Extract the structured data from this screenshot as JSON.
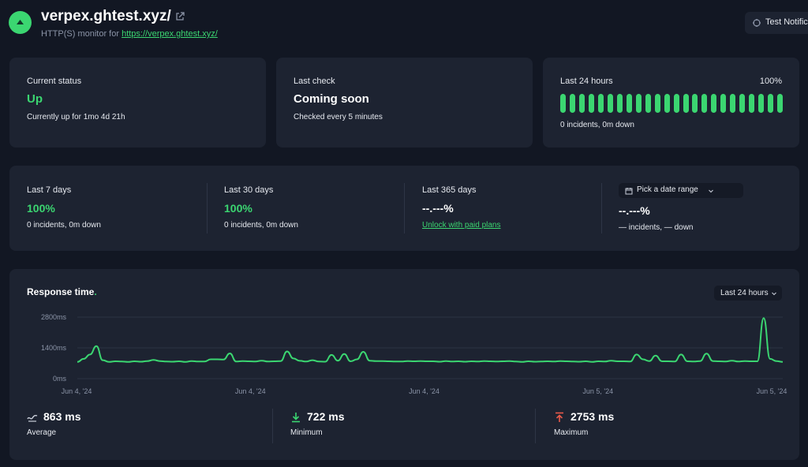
{
  "header": {
    "title": "verpex.ghtest.xyz/",
    "subtitle_prefix": "HTTP(S) monitor for",
    "url": "https://verpex.ghtest.xyz/",
    "test_button": "Test Notifica"
  },
  "current_status": {
    "label": "Current status",
    "value": "Up",
    "detail": "Currently up for 1mo 4d 21h"
  },
  "last_check": {
    "label": "Last check",
    "value": "Coming soon",
    "detail": "Checked every 5 minutes"
  },
  "last24": {
    "label": "Last 24 hours",
    "percent": "100%",
    "detail": "0 incidents, 0m down",
    "bar_count": 24,
    "bar_color": "#3bd671"
  },
  "uptime": [
    {
      "label": "Last 7 days",
      "value": "100%",
      "detail": "0 incidents, 0m down"
    },
    {
      "label": "Last 30 days",
      "value": "100%",
      "detail": "0 incidents, 0m down"
    },
    {
      "label": "Last 365 days",
      "value": "--.---%",
      "detail": "Unlock with paid plans"
    },
    {
      "label": "Pick a date range",
      "value": "--.---%",
      "detail": "— incidents, — down"
    }
  ],
  "response": {
    "title": "Response time",
    "title_dot": ".",
    "range_select": "Last 24 hours",
    "stats": [
      {
        "value": "863 ms",
        "label": "Average",
        "icon": "average-icon"
      },
      {
        "value": "722 ms",
        "label": "Minimum",
        "icon": "arrow-down-icon"
      },
      {
        "value": "2753 ms",
        "label": "Maximum",
        "icon": "arrow-up-icon"
      }
    ]
  },
  "chart_data": {
    "type": "line",
    "ylim": [
      0,
      2800
    ],
    "yticks": [
      "2800ms",
      "1400ms",
      "0ms"
    ],
    "xticks": [
      "Jun 4, '24",
      "Jun 4, '24",
      "Jun 4, '24",
      "Jun 5, '24",
      "Jun 5, '24"
    ],
    "series": [
      {
        "color": "#3bd671",
        "values": [
          760,
          900,
          1100,
          1480,
          840,
          760,
          790,
          780,
          760,
          790,
          770,
          800,
          850,
          800,
          780,
          770,
          790,
          760,
          800,
          780,
          780,
          880,
          880,
          870,
          1150,
          780,
          800,
          790,
          780,
          820,
          780,
          790,
          800,
          1240,
          920,
          810,
          780,
          840,
          780,
          770,
          1080,
          820,
          1120,
          790,
          880,
          1220,
          820,
          800,
          800,
          790,
          780,
          780,
          800,
          790,
          800,
          790,
          790,
          770,
          800,
          780,
          790,
          770,
          790,
          780,
          800,
          790,
          780,
          790,
          800,
          780,
          760,
          790,
          770,
          780,
          790,
          780,
          800,
          790,
          780,
          770,
          790,
          760,
          790,
          780,
          820,
          790,
          790,
          780,
          1100,
          880,
          800,
          1050,
          790,
          790,
          780,
          1100,
          790,
          780,
          800,
          1140,
          800,
          790,
          780,
          820,
          780,
          800,
          790,
          790,
          2753,
          900,
          800,
          760
        ]
      }
    ]
  },
  "colors": {
    "accent": "#3bd671",
    "card": "#1d2331",
    "background": "#121723",
    "danger": "#e8594a"
  }
}
